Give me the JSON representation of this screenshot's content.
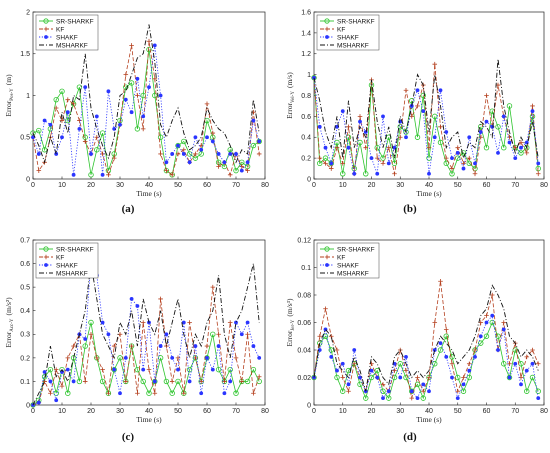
{
  "figure": {
    "panel_labels": [
      "(a)",
      "(b)",
      "(c)",
      "(d)"
    ]
  },
  "series_style": {
    "SR-SHARKF": {
      "color": "#2ec52e",
      "marker": "circle-open",
      "dash": "solid"
    },
    "KF": {
      "color": "#b5401f",
      "marker": "plus",
      "dash": "dashed"
    },
    "SHAKF": {
      "color": "#2a35ff",
      "marker": "circle-filled",
      "dash": "dotted"
    },
    "MSHARKF": {
      "color": "#111111",
      "marker": "none",
      "dash": "dashdot"
    }
  },
  "chart_data": [
    {
      "type": "line",
      "panel": "(a)",
      "xlabel": "Time (s)",
      "ylabel": "Error",
      "ylabel_sub": "Pos-Y",
      "ylabel_unit": "(m)",
      "xlim": [
        0,
        80
      ],
      "ylim": [
        0,
        2
      ],
      "xticks": [
        0,
        10,
        20,
        30,
        40,
        50,
        60,
        70,
        80
      ],
      "yticks": [
        0,
        0.5,
        1,
        1.5,
        2
      ],
      "ytick_labels": [
        "0",
        "0.5",
        "1",
        "1.5",
        "2"
      ],
      "legend": [
        "SR-SHARKF",
        "KF",
        "SHAKF",
        "MSHARKF"
      ],
      "legend_position": "top-left",
      "x": [
        0,
        2,
        4,
        6,
        8,
        10,
        12,
        14,
        16,
        18,
        20,
        22,
        24,
        26,
        28,
        30,
        32,
        34,
        36,
        38,
        40,
        42,
        44,
        46,
        48,
        50,
        52,
        54,
        56,
        58,
        60,
        62,
        64,
        66,
        68,
        70,
        72,
        74,
        76,
        78
      ],
      "series": [
        {
          "name": "SR-SHARKF",
          "values": [
            0.55,
            0.58,
            0.35,
            0.6,
            0.95,
            1.05,
            0.7,
            0.9,
            1.1,
            0.5,
            0.05,
            0.35,
            0.55,
            0.1,
            0.3,
            0.7,
            1.1,
            1.15,
            0.6,
            1.0,
            1.55,
            1.0,
            0.5,
            0.1,
            0.05,
            0.4,
            0.45,
            0.3,
            0.25,
            0.3,
            0.7,
            0.5,
            0.2,
            0.15,
            0.35,
            0.1,
            0.2,
            0.15,
            0.4,
            0.45
          ]
        },
        {
          "name": "KF",
          "values": [
            0.5,
            0.1,
            0.2,
            0.5,
            0.85,
            0.7,
            0.95,
            0.9,
            0.7,
            0.45,
            0.3,
            0.5,
            0.3,
            0.05,
            0.25,
            0.65,
            1.25,
            1.6,
            1.0,
            0.6,
            1.65,
            1.2,
            0.3,
            0.1,
            0.05,
            0.3,
            0.35,
            0.2,
            0.3,
            0.4,
            0.9,
            0.55,
            0.15,
            0.2,
            0.05,
            0.3,
            0.15,
            0.1,
            0.8,
            0.3
          ]
        },
        {
          "name": "SHAKF",
          "values": [
            0.5,
            0.3,
            0.7,
            0.65,
            0.3,
            0.5,
            0.8,
            0.05,
            0.6,
            1.1,
            0.3,
            0.75,
            0.05,
            1.05,
            0.6,
            0.65,
            0.95,
            0.8,
            1.2,
            0.75,
            1.1,
            1.6,
            1.0,
            0.2,
            0.3,
            0.4,
            0.3,
            0.2,
            0.5,
            0.35,
            0.5,
            0.45,
            0.3,
            0.2,
            0.3,
            0.3,
            0.1,
            0.2,
            0.7,
            0.45
          ]
        },
        {
          "name": "MSHARKF",
          "values": [
            0.55,
            0.4,
            0.2,
            0.5,
            0.3,
            0.8,
            0.55,
            1.0,
            0.95,
            1.5,
            0.85,
            0.6,
            0.4,
            0.25,
            0.5,
            1.0,
            1.05,
            1.25,
            1.45,
            1.5,
            1.85,
            1.4,
            0.65,
            0.5,
            0.7,
            0.85,
            0.55,
            0.35,
            0.4,
            0.5,
            0.85,
            0.7,
            0.6,
            0.55,
            0.4,
            0.2,
            0.35,
            0.3,
            0.95,
            0.55
          ]
        }
      ]
    },
    {
      "type": "line",
      "panel": "(b)",
      "xlabel": "Time (s)",
      "ylabel": "Error",
      "ylabel_sub": "Vel-Y",
      "ylabel_unit": "(m/s)",
      "xlim": [
        0,
        80
      ],
      "ylim": [
        0,
        1.6
      ],
      "xticks": [
        0,
        10,
        20,
        30,
        40,
        50,
        60,
        70,
        80
      ],
      "yticks": [
        0,
        0.2,
        0.4,
        0.6,
        0.8,
        1,
        1.2,
        1.4,
        1.6
      ],
      "ytick_labels": [
        "0",
        "0.2",
        "0.4",
        "0.6",
        "0.8",
        "1",
        "1.2",
        "1.4",
        "1.6"
      ],
      "legend": [
        "SR-SHARKF",
        "KF",
        "SHAKF",
        "MSHARKF"
      ],
      "legend_position": "top-left",
      "x": [
        0,
        2,
        4,
        6,
        8,
        10,
        12,
        14,
        16,
        18,
        20,
        22,
        24,
        26,
        28,
        30,
        32,
        34,
        36,
        38,
        40,
        42,
        44,
        46,
        48,
        50,
        52,
        54,
        56,
        58,
        60,
        62,
        64,
        66,
        68,
        70,
        72,
        74,
        76,
        78
      ],
      "series": [
        {
          "name": "SR-SHARKF",
          "values": [
            0.97,
            0.15,
            0.2,
            0.15,
            0.35,
            0.05,
            0.4,
            0.1,
            0.35,
            0.05,
            0.9,
            0.3,
            0.2,
            0.4,
            0.15,
            0.5,
            0.45,
            0.75,
            0.4,
            0.8,
            0.2,
            0.6,
            0.35,
            0.15,
            0.05,
            0.2,
            0.25,
            0.15,
            0.1,
            0.5,
            0.3,
            0.65,
            0.5,
            0.3,
            0.7,
            0.3,
            0.25,
            0.3,
            0.6,
            0.1
          ]
        },
        {
          "name": "KF",
          "values": [
            0.97,
            0.2,
            0.15,
            0.1,
            0.3,
            0.15,
            0.5,
            0.05,
            0.6,
            0.3,
            0.95,
            0.2,
            0.15,
            0.3,
            0.05,
            0.4,
            0.85,
            0.6,
            0.7,
            0.9,
            0.3,
            1.1,
            0.5,
            0.2,
            0.1,
            0.3,
            0.15,
            0.2,
            0.05,
            0.4,
            0.8,
            0.5,
            0.9,
            0.6,
            0.4,
            0.3,
            0.35,
            0.25,
            0.7,
            0.05
          ]
        },
        {
          "name": "SHAKF",
          "values": [
            0.97,
            0.5,
            0.3,
            0.15,
            0.5,
            0.65,
            0.3,
            0.05,
            0.55,
            0.45,
            0.2,
            0.05,
            0.6,
            0.15,
            0.3,
            0.55,
            0.4,
            0.7,
            0.85,
            0.65,
            0.05,
            0.4,
            0.85,
            0.45,
            0.2,
            0.25,
            0.1,
            0.4,
            0.15,
            0.45,
            0.55,
            0.5,
            0.25,
            0.6,
            0.35,
            0.2,
            0.3,
            0.35,
            0.65,
            0.15
          ]
        },
        {
          "name": "MSHARKF",
          "values": [
            0.97,
            0.75,
            0.45,
            0.3,
            0.6,
            0.2,
            0.75,
            0.3,
            0.5,
            0.4,
            0.95,
            0.55,
            0.3,
            0.5,
            0.2,
            0.6,
            0.45,
            0.7,
            1.0,
            0.9,
            0.45,
            1.0,
            0.7,
            0.3,
            0.4,
            0.45,
            0.2,
            0.35,
            0.3,
            0.55,
            0.5,
            0.4,
            1.15,
            0.7,
            0.45,
            0.25,
            0.4,
            0.3,
            0.55,
            0.2
          ]
        }
      ]
    },
    {
      "type": "line",
      "panel": "(c)",
      "xlabel": "Time (s)",
      "ylabel": "Error",
      "ylabel_sub": "Acc-Y",
      "ylabel_unit": "(m/s²)",
      "xlim": [
        0,
        80
      ],
      "ylim": [
        0,
        0.7
      ],
      "xticks": [
        0,
        10,
        20,
        30,
        40,
        50,
        60,
        70,
        80
      ],
      "yticks": [
        0,
        0.1,
        0.2,
        0.3,
        0.4,
        0.5,
        0.6,
        0.7
      ],
      "ytick_labels": [
        "0",
        "0.1",
        "0.2",
        "0.3",
        "0.4",
        "0.5",
        "0.6",
        "0.7"
      ],
      "legend": [
        "SR-SHARKF",
        "KF",
        "SHAKF",
        "MSHARKF"
      ],
      "legend_position": "top-left",
      "x": [
        0,
        2,
        4,
        6,
        8,
        10,
        12,
        14,
        16,
        18,
        20,
        22,
        24,
        26,
        28,
        30,
        32,
        34,
        36,
        38,
        40,
        42,
        44,
        46,
        48,
        50,
        52,
        54,
        56,
        58,
        60,
        62,
        64,
        66,
        68,
        70,
        72,
        74,
        76,
        78
      ],
      "series": [
        {
          "name": "SR-SHARKF",
          "values": [
            0.0,
            0.02,
            0.12,
            0.15,
            0.05,
            0.15,
            0.05,
            0.2,
            0.1,
            0.25,
            0.35,
            0.2,
            0.1,
            0.05,
            0.15,
            0.2,
            0.1,
            0.25,
            0.15,
            0.1,
            0.05,
            0.1,
            0.2,
            0.1,
            0.05,
            0.1,
            0.05,
            0.15,
            0.2,
            0.1,
            0.2,
            0.3,
            0.15,
            0.1,
            0.15,
            0.05,
            0.1,
            0.1,
            0.15,
            0.1
          ]
        },
        {
          "name": "KF",
          "values": [
            0.0,
            0.01,
            0.1,
            0.05,
            0.15,
            0.08,
            0.2,
            0.25,
            0.3,
            0.1,
            0.3,
            0.2,
            0.15,
            0.05,
            0.25,
            0.3,
            0.1,
            0.25,
            0.05,
            0.35,
            0.15,
            0.05,
            0.45,
            0.25,
            0.1,
            0.2,
            0.05,
            0.35,
            0.2,
            0.1,
            0.25,
            0.5,
            0.3,
            0.1,
            0.35,
            0.2,
            0.1,
            0.3,
            0.05,
            0.12
          ]
        },
        {
          "name": "SHAKF",
          "values": [
            0.0,
            0.01,
            0.14,
            0.1,
            0.02,
            0.14,
            0.15,
            0.1,
            0.3,
            0.28,
            0.61,
            0.55,
            0.35,
            0.3,
            0.15,
            0.05,
            0.2,
            0.45,
            0.42,
            0.15,
            0.35,
            0.1,
            0.25,
            0.3,
            0.2,
            0.15,
            0.35,
            0.1,
            0.25,
            0.05,
            0.2,
            0.15,
            0.25,
            0.05,
            0.1,
            0.35,
            0.3,
            0.35,
            0.25,
            0.2
          ]
        },
        {
          "name": "MSHARKF",
          "values": [
            0.0,
            0.05,
            0.1,
            0.25,
            0.12,
            0.15,
            0.1,
            0.2,
            0.3,
            0.4,
            0.6,
            0.45,
            0.3,
            0.25,
            0.2,
            0.35,
            0.3,
            0.4,
            0.25,
            0.45,
            0.35,
            0.3,
            0.4,
            0.25,
            0.35,
            0.45,
            0.3,
            0.2,
            0.3,
            0.25,
            0.35,
            0.4,
            0.55,
            0.3,
            0.2,
            0.35,
            0.4,
            0.5,
            0.6,
            0.35
          ]
        }
      ]
    },
    {
      "type": "line",
      "panel": "(d)",
      "xlabel": "Time (s)",
      "ylabel": "Error",
      "ylabel_sub": "Jer-Y",
      "ylabel_unit": "(m/s³)",
      "xlim": [
        0,
        80
      ],
      "ylim": [
        0,
        0.12
      ],
      "xticks": [
        0,
        10,
        20,
        30,
        40,
        50,
        60,
        70,
        80
      ],
      "yticks": [
        0,
        0.02,
        0.04,
        0.06,
        0.08,
        0.1,
        0.12
      ],
      "ytick_labels": [
        "0",
        "0.02",
        "0.04",
        "0.06",
        "0.08",
        "0.1",
        "0.12"
      ],
      "legend": [
        "SR-SHARKF",
        "KF",
        "SHAKF",
        "MSHARKF"
      ],
      "legend_position": "top-left",
      "x": [
        0,
        2,
        4,
        6,
        8,
        10,
        12,
        14,
        16,
        18,
        20,
        22,
        24,
        26,
        28,
        30,
        32,
        34,
        36,
        38,
        40,
        42,
        44,
        46,
        48,
        50,
        52,
        54,
        56,
        58,
        60,
        62,
        64,
        66,
        68,
        70,
        72,
        74,
        76,
        78
      ],
      "series": [
        {
          "name": "SR-SHARKF",
          "values": [
            0.02,
            0.045,
            0.05,
            0.04,
            0.02,
            0.01,
            0.025,
            0.03,
            0.015,
            0.005,
            0.02,
            0.025,
            0.01,
            0.005,
            0.02,
            0.03,
            0.02,
            0.01,
            0.015,
            0.005,
            0.02,
            0.03,
            0.04,
            0.05,
            0.035,
            0.02,
            0.01,
            0.02,
            0.04,
            0.045,
            0.05,
            0.06,
            0.05,
            0.03,
            0.02,
            0.04,
            0.03,
            0.01,
            0.02,
            0.01
          ]
        },
        {
          "name": "KF",
          "values": [
            0.02,
            0.05,
            0.07,
            0.05,
            0.04,
            0.02,
            0.01,
            0.03,
            0.02,
            0.01,
            0.03,
            0.02,
            0.015,
            0.01,
            0.025,
            0.04,
            0.025,
            0.005,
            0.02,
            0.01,
            0.02,
            0.06,
            0.09,
            0.055,
            0.03,
            0.01,
            0.02,
            0.03,
            0.04,
            0.06,
            0.065,
            0.08,
            0.04,
            0.06,
            0.03,
            0.045,
            0.02,
            0.035,
            0.04,
            0.03
          ]
        },
        {
          "name": "SHAKF",
          "values": [
            0.02,
            0.04,
            0.055,
            0.035,
            0.025,
            0.03,
            0.015,
            0.04,
            0.02,
            0.01,
            0.025,
            0.02,
            0.005,
            0.01,
            0.03,
            0.02,
            0.035,
            0.01,
            0.005,
            0.015,
            0.01,
            0.04,
            0.045,
            0.035,
            0.02,
            0.005,
            0.015,
            0.025,
            0.035,
            0.05,
            0.06,
            0.065,
            0.04,
            0.055,
            0.02,
            0.03,
            0.015,
            0.025,
            0.03,
            0.005
          ]
        },
        {
          "name": "MSHARKF",
          "values": [
            0.02,
            0.045,
            0.055,
            0.05,
            0.03,
            0.025,
            0.02,
            0.035,
            0.025,
            0.01,
            0.035,
            0.03,
            0.02,
            0.015,
            0.035,
            0.04,
            0.03,
            0.02,
            0.025,
            0.02,
            0.025,
            0.04,
            0.05,
            0.045,
            0.04,
            0.03,
            0.035,
            0.04,
            0.05,
            0.065,
            0.07,
            0.087,
            0.08,
            0.07,
            0.05,
            0.045,
            0.035,
            0.04,
            0.035,
            0.025
          ]
        }
      ]
    }
  ]
}
